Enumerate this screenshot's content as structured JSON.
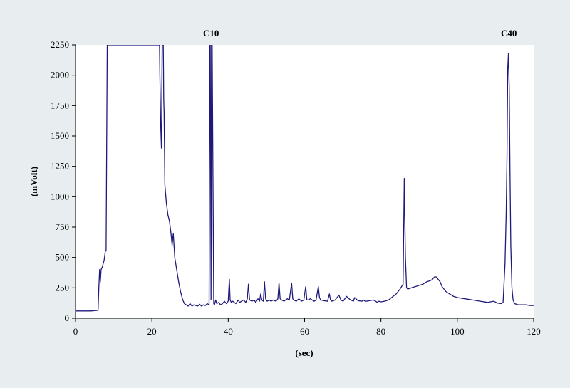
{
  "chart_data": {
    "type": "line",
    "xlabel": "(sec)",
    "ylabel": "(mVolt)",
    "xlim": [
      0,
      120
    ],
    "ylim": [
      0,
      2250
    ],
    "x_ticks": [
      "0",
      "20",
      "40",
      "60",
      "80",
      "100",
      "120"
    ],
    "y_ticks": [
      "0",
      "250",
      "500",
      "750",
      "1000",
      "1250",
      "1500",
      "1750",
      "2000",
      "2250"
    ],
    "grid": false,
    "legend": "none",
    "annotations": [
      {
        "text": "C10",
        "x": 35.5,
        "y": 2250
      },
      {
        "text": "C40",
        "x": 113.5,
        "y": 2250
      }
    ],
    "colors": {
      "line": "#1f1a7a",
      "axis": "#000000",
      "plot_background": "#ffffff",
      "page_background": "#e8eef0"
    },
    "series": [
      {
        "x": [
          0,
          2,
          4,
          5.9,
          6.1,
          6.3,
          6.5,
          6.7,
          7,
          7.5,
          7.8,
          8,
          8.3,
          8.7,
          22,
          22.1,
          22.3,
          22.5,
          22.7,
          23,
          23.1,
          23.2,
          23.4,
          23.8,
          24.2,
          24.6,
          25,
          25.3,
          25.6,
          26,
          26.5,
          27,
          27.5,
          28,
          28.5,
          29,
          29.5,
          30,
          30.5,
          31,
          31.5,
          32,
          32.5,
          33,
          33.5,
          34,
          34.5,
          35,
          35.2,
          35.3,
          35.5,
          35.6,
          35.8,
          36.2,
          36.4,
          36.7,
          37,
          37.5,
          38,
          38.5,
          39,
          39.5,
          40,
          40.3,
          40.5,
          40.8,
          41.2,
          42,
          42.6,
          43,
          43.5,
          44,
          44.6,
          45,
          45.3,
          45.6,
          46.2,
          46.8,
          47.2,
          47.8,
          48.2,
          48.5,
          48.8,
          49.2,
          49.5,
          49.8,
          50.2,
          50.8,
          51.2,
          51.8,
          52.5,
          53,
          53.3,
          53.6,
          54,
          54.6,
          55,
          55.5,
          56,
          56.6,
          56.9,
          57.2,
          57.8,
          58.5,
          59.2,
          59.8,
          60.3,
          60.6,
          60.9,
          61.5,
          62,
          62.5,
          63,
          63.6,
          63.9,
          64.2,
          65,
          66,
          66.5,
          66.8,
          67.1,
          68,
          69,
          69.5,
          69.8,
          70.1,
          71,
          72,
          72.5,
          72.8,
          73.1,
          74,
          75,
          75.5,
          75.8,
          76.2,
          77,
          78,
          78.6,
          79,
          79.4,
          80,
          81,
          82,
          83,
          84,
          85,
          85.8,
          86.1,
          86.4,
          86.7,
          87,
          87.5,
          88,
          89,
          90,
          91,
          92,
          93,
          93.5,
          94,
          94.5,
          95,
          95.5,
          96,
          97,
          98,
          99,
          100,
          102,
          104,
          106,
          108,
          109.5,
          110.5,
          111.5,
          112,
          112.5,
          112.8,
          113,
          113.2,
          113.4,
          113.6,
          113.8,
          114,
          114.3,
          114.6,
          115,
          115.5,
          116,
          117,
          118,
          119,
          120
        ],
        "y": [
          60,
          60,
          60,
          65,
          250,
          400,
          300,
          400,
          420,
          480,
          550,
          560,
          2250,
          2250,
          2250,
          2000,
          1600,
          1400,
          2250,
          2250,
          1800,
          1700,
          1100,
          950,
          850,
          800,
          700,
          600,
          700,
          500,
          400,
          300,
          220,
          160,
          120,
          110,
          100,
          120,
          100,
          110,
          105,
          100,
          115,
          100,
          110,
          105,
          120,
          110,
          2250,
          2250,
          150,
          2250,
          2250,
          120,
          110,
          150,
          120,
          130,
          110,
          120,
          140,
          120,
          140,
          320,
          150,
          130,
          140,
          120,
          150,
          130,
          140,
          150,
          130,
          160,
          280,
          150,
          140,
          150,
          130,
          160,
          140,
          200,
          150,
          140,
          300,
          160,
          140,
          150,
          140,
          150,
          140,
          160,
          290,
          160,
          150,
          140,
          150,
          160,
          150,
          290,
          160,
          150,
          140,
          160,
          140,
          150,
          260,
          150,
          150,
          160,
          150,
          140,
          150,
          260,
          170,
          150,
          145,
          140,
          200,
          150,
          140,
          150,
          190,
          150,
          145,
          140,
          180,
          150,
          145,
          140,
          170,
          145,
          140,
          150,
          140,
          140,
          145,
          150,
          140,
          130,
          140,
          135,
          140,
          150,
          175,
          200,
          240,
          280,
          1150,
          500,
          250,
          240,
          245,
          250,
          260,
          270,
          280,
          300,
          310,
          320,
          340,
          340,
          320,
          300,
          260,
          220,
          200,
          180,
          170,
          160,
          150,
          140,
          130,
          140,
          125,
          120,
          130,
          450,
          850,
          1300,
          2050,
          2180,
          1900,
          1200,
          600,
          250,
          150,
          120,
          115,
          110,
          110,
          110,
          105,
          105
        ]
      }
    ]
  }
}
